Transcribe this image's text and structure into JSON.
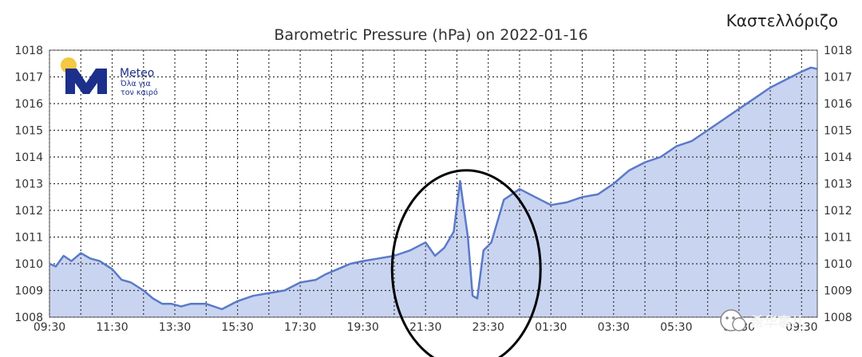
{
  "chart_data": {
    "type": "area",
    "title": "Barometric Pressure (hPa) on 2022-01-16",
    "location": "Καστελλόριζο",
    "xlabel": "",
    "ylabel": "",
    "x_ticks": [
      "09:30",
      "11:30",
      "13:30",
      "15:30",
      "17:30",
      "19:30",
      "21:30",
      "23:30",
      "01:30",
      "03:30",
      "05:30",
      "07:30",
      "09:30"
    ],
    "y_ticks": [
      1008,
      1009,
      1010,
      1011,
      1012,
      1013,
      1014,
      1015,
      1016,
      1017,
      1018
    ],
    "ylim": [
      1008,
      1018
    ],
    "xlim_hours": [
      0,
      24.5
    ],
    "grid": true,
    "series": [
      {
        "x": [
          0,
          0.2,
          0.45,
          0.7,
          1.0,
          1.3,
          1.6,
          2.0,
          2.3,
          2.6,
          3.0,
          3.3,
          3.6,
          3.9,
          4.2,
          4.5,
          5.0,
          5.5,
          6.0,
          6.5,
          7.0,
          7.5,
          8.0,
          8.5,
          8.8,
          9.2,
          9.6,
          10.0,
          10.5,
          11.0,
          11.5,
          12.0,
          12.5,
          13.0,
          13.5,
          14.0,
          14.5,
          15.0,
          15.5,
          16.0,
          16.5,
          17.0,
          17.5,
          18.0,
          18.5,
          19.0,
          19.5,
          20.0,
          20.5,
          21.0,
          21.5,
          22.0,
          22.5,
          23.0,
          23.5,
          24.0,
          24.3,
          24.5
        ],
        "y": [
          1010.0,
          1009.9,
          1010.3,
          1010.1,
          1010.4,
          1010.2,
          1010.1,
          1009.8,
          1009.4,
          1009.3,
          1009.0,
          1008.7,
          1008.5,
          1008.5,
          1008.4,
          1008.5,
          1008.5,
          1008.3,
          1008.6,
          1008.8,
          1008.9,
          1009.0,
          1009.3,
          1009.4,
          1009.6,
          1009.8,
          1010.0,
          1010.1,
          1010.2,
          1010.3,
          1010.5,
          1010.8,
          1011.2,
          1011.5,
          1011.8,
          1012.0,
          1012.4,
          1012.8,
          1012.5,
          1012.2,
          1012.3,
          1012.5,
          1012.6,
          1013.0,
          1013.5,
          1013.8,
          1014.0,
          1014.4,
          1014.6,
          1015.0,
          1015.4,
          1015.8,
          1016.2,
          1016.6,
          1016.9,
          1017.2,
          1017.35,
          1017.3
        ]
      }
    ],
    "spike_series": {
      "x": [
        12.3,
        12.6,
        12.9,
        13.1,
        13.35,
        13.5,
        13.65,
        13.85,
        14.1
      ],
      "y": [
        1010.3,
        1010.6,
        1011.2,
        1013.1,
        1011.0,
        1008.8,
        1008.7,
        1010.5,
        1010.8
      ]
    },
    "annotation": "ellipse around spike near 22:30",
    "colors": {
      "line": "#5a7ac8",
      "fill": "#c9d4f1",
      "grid": "#333333",
      "ellipse": "#000000"
    }
  },
  "logo": {
    "brand": "Meteo",
    "tagline_1": "Όλα για",
    "tagline_2": "τον καιρό",
    "colors": {
      "sun": "#f5c842",
      "mark": "#1c2f8a"
    }
  },
  "watermark": {
    "text": "希华事儿",
    "icon": "wechat-icon"
  }
}
